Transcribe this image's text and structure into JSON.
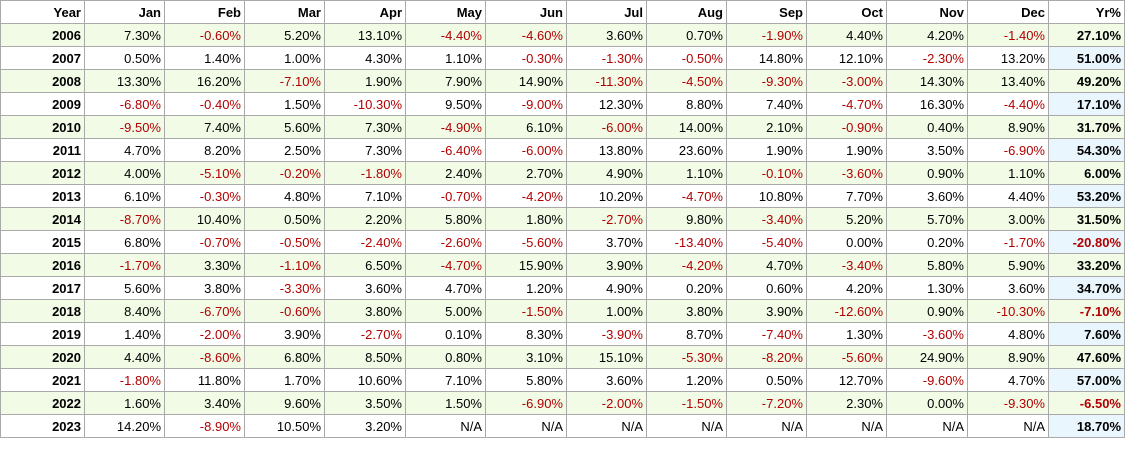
{
  "table": {
    "headers": [
      "Year",
      "Jan",
      "Feb",
      "Mar",
      "Apr",
      "May",
      "Jun",
      "Jul",
      "Aug",
      "Sep",
      "Oct",
      "Nov",
      "Dec",
      "Yr%"
    ],
    "rows": [
      {
        "year": "2006",
        "cells": [
          "7.30%",
          "-0.60%",
          "5.20%",
          "13.10%",
          "-4.40%",
          "-4.60%",
          "3.60%",
          "0.70%",
          "-1.90%",
          "4.40%",
          "4.20%",
          "-1.40%",
          "27.10%"
        ]
      },
      {
        "year": "2007",
        "cells": [
          "0.50%",
          "1.40%",
          "1.00%",
          "4.30%",
          "1.10%",
          "-0.30%",
          "-1.30%",
          "-0.50%",
          "14.80%",
          "12.10%",
          "-2.30%",
          "13.20%",
          "51.00%"
        ]
      },
      {
        "year": "2008",
        "cells": [
          "13.30%",
          "16.20%",
          "-7.10%",
          "1.90%",
          "7.90%",
          "14.90%",
          "-11.30%",
          "-4.50%",
          "-9.30%",
          "-3.00%",
          "14.30%",
          "13.40%",
          "49.20%"
        ]
      },
      {
        "year": "2009",
        "cells": [
          "-6.80%",
          "-0.40%",
          "1.50%",
          "-10.30%",
          "9.50%",
          "-9.00%",
          "12.30%",
          "8.80%",
          "7.40%",
          "-4.70%",
          "16.30%",
          "-4.40%",
          "17.10%"
        ]
      },
      {
        "year": "2010",
        "cells": [
          "-9.50%",
          "7.40%",
          "5.60%",
          "7.30%",
          "-4.90%",
          "6.10%",
          "-6.00%",
          "14.00%",
          "2.10%",
          "-0.90%",
          "0.40%",
          "8.90%",
          "31.70%"
        ]
      },
      {
        "year": "2011",
        "cells": [
          "4.70%",
          "8.20%",
          "2.50%",
          "7.30%",
          "-6.40%",
          "-6.00%",
          "13.80%",
          "23.60%",
          "1.90%",
          "1.90%",
          "3.50%",
          "-6.90%",
          "54.30%"
        ]
      },
      {
        "year": "2012",
        "cells": [
          "4.00%",
          "-5.10%",
          "-0.20%",
          "-1.80%",
          "2.40%",
          "2.70%",
          "4.90%",
          "1.10%",
          "-0.10%",
          "-3.60%",
          "0.90%",
          "1.10%",
          "6.00%"
        ]
      },
      {
        "year": "2013",
        "cells": [
          "6.10%",
          "-0.30%",
          "4.80%",
          "7.10%",
          "-0.70%",
          "-4.20%",
          "10.20%",
          "-4.70%",
          "10.80%",
          "7.70%",
          "3.60%",
          "4.40%",
          "53.20%"
        ]
      },
      {
        "year": "2014",
        "cells": [
          "-8.70%",
          "10.40%",
          "0.50%",
          "2.20%",
          "5.80%",
          "1.80%",
          "-2.70%",
          "9.80%",
          "-3.40%",
          "5.20%",
          "5.70%",
          "3.00%",
          "31.50%"
        ]
      },
      {
        "year": "2015",
        "cells": [
          "6.80%",
          "-0.70%",
          "-0.50%",
          "-2.40%",
          "-2.60%",
          "-5.60%",
          "3.70%",
          "-13.40%",
          "-5.40%",
          "0.00%",
          "0.20%",
          "-1.70%",
          "-20.80%"
        ]
      },
      {
        "year": "2016",
        "cells": [
          "-1.70%",
          "3.30%",
          "-1.10%",
          "6.50%",
          "-4.70%",
          "15.90%",
          "3.90%",
          "-4.20%",
          "4.70%",
          "-3.40%",
          "5.80%",
          "5.90%",
          "33.20%"
        ]
      },
      {
        "year": "2017",
        "cells": [
          "5.60%",
          "3.80%",
          "-3.30%",
          "3.60%",
          "4.70%",
          "1.20%",
          "4.90%",
          "0.20%",
          "0.60%",
          "4.20%",
          "1.30%",
          "3.60%",
          "34.70%"
        ]
      },
      {
        "year": "2018",
        "cells": [
          "8.40%",
          "-6.70%",
          "-0.60%",
          "3.80%",
          "5.00%",
          "-1.50%",
          "1.00%",
          "3.80%",
          "3.90%",
          "-12.60%",
          "0.90%",
          "-10.30%",
          "-7.10%"
        ]
      },
      {
        "year": "2019",
        "cells": [
          "1.40%",
          "-2.00%",
          "3.90%",
          "-2.70%",
          "0.10%",
          "8.30%",
          "-3.90%",
          "8.70%",
          "-7.40%",
          "1.30%",
          "-3.60%",
          "4.80%",
          "7.60%"
        ]
      },
      {
        "year": "2020",
        "cells": [
          "4.40%",
          "-8.60%",
          "6.80%",
          "8.50%",
          "0.80%",
          "3.10%",
          "15.10%",
          "-5.30%",
          "-8.20%",
          "-5.60%",
          "24.90%",
          "8.90%",
          "47.60%"
        ]
      },
      {
        "year": "2021",
        "cells": [
          "-1.80%",
          "11.80%",
          "1.70%",
          "10.60%",
          "7.10%",
          "5.80%",
          "3.60%",
          "1.20%",
          "0.50%",
          "12.70%",
          "-9.60%",
          "4.70%",
          "57.00%"
        ]
      },
      {
        "year": "2022",
        "cells": [
          "1.60%",
          "3.40%",
          "9.60%",
          "3.50%",
          "1.50%",
          "-6.90%",
          "-2.00%",
          "-1.50%",
          "-7.20%",
          "2.30%",
          "0.00%",
          "-9.30%",
          "-6.50%"
        ]
      },
      {
        "year": "2023",
        "cells": [
          "14.20%",
          "-8.90%",
          "10.50%",
          "3.20%",
          "N/A",
          "N/A",
          "N/A",
          "N/A",
          "N/A",
          "N/A",
          "N/A",
          "N/A",
          "18.70%"
        ]
      }
    ]
  },
  "colors": {
    "negative_text": "#b00000",
    "odd_row_background": "#f2fbe6",
    "year_total_background": "#e8f4fc",
    "grid_border": "#a9a9a9"
  }
}
